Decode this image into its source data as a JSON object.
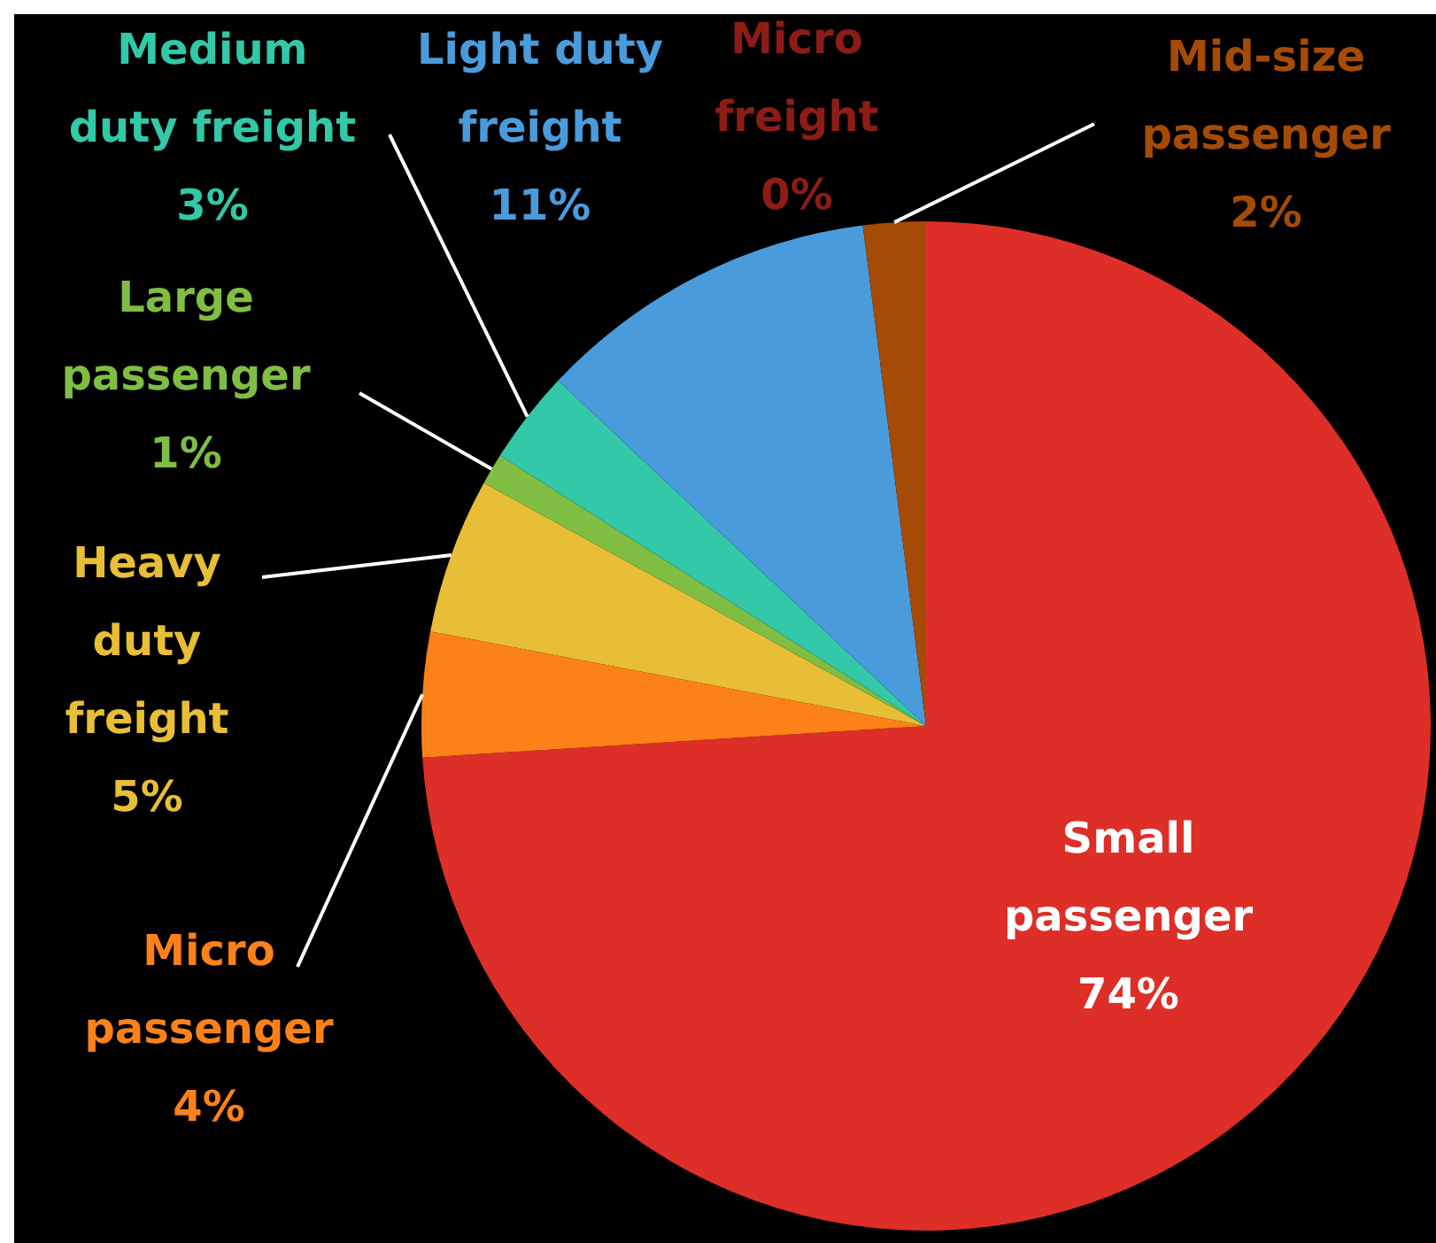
{
  "chart_data": {
    "type": "pie",
    "categories": [
      "Small passenger",
      "Micro passenger",
      "Heavy duty freight",
      "Large passenger",
      "Medium duty freight",
      "Light duty freight",
      "Micro freight",
      "Mid-size passenger"
    ],
    "values": [
      74,
      4,
      5,
      1,
      3,
      11,
      0,
      2
    ],
    "colors": [
      "#de2e28",
      "#fc8119",
      "#e8be36",
      "#80bd43",
      "#32c8a8",
      "#4a9bdc",
      "#8e1c16",
      "#a54b06"
    ],
    "value_labels": [
      "74%",
      "4%",
      "5%",
      "1%",
      "3%",
      "11%",
      "0%",
      "2%"
    ],
    "legend": false
  }
}
